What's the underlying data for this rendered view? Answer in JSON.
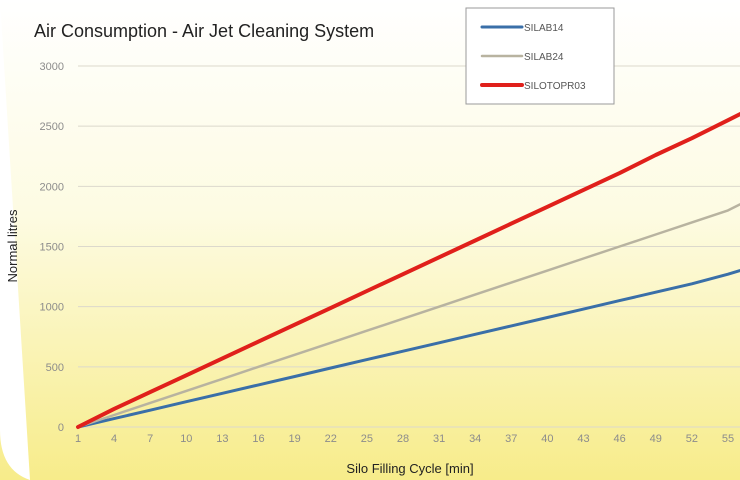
{
  "chart_data": {
    "type": "line",
    "title": "Air Consumption - Air Jet Cleaning System",
    "xlabel": "Silo Filling Cycle [min]",
    "ylabel": "Normal litres",
    "x_ticks": [
      1,
      4,
      7,
      10,
      13,
      16,
      19,
      22,
      25,
      28,
      31,
      34,
      37,
      40,
      43,
      46,
      49,
      52,
      55
    ],
    "xlim": [
      1,
      56
    ],
    "ylim": [
      0,
      3000
    ],
    "y_ticks": [
      0,
      500,
      1000,
      1500,
      2000,
      2500,
      3000
    ],
    "grid": true,
    "legend_position": "top-right",
    "series": [
      {
        "name": "SILAB14",
        "color": "#3a6fa8",
        "x": [
          1,
          4,
          7,
          10,
          13,
          16,
          19,
          22,
          25,
          28,
          31,
          34,
          37,
          40,
          43,
          46,
          49,
          52,
          55,
          56
        ],
        "values": [
          0,
          70,
          140,
          210,
          280,
          350,
          420,
          490,
          560,
          630,
          700,
          770,
          840,
          910,
          980,
          1050,
          1120,
          1190,
          1270,
          1300
        ]
      },
      {
        "name": "SILAB24",
        "color": "#b8b3a0",
        "x": [
          1,
          4,
          7,
          10,
          13,
          16,
          19,
          22,
          25,
          28,
          31,
          34,
          37,
          40,
          43,
          46,
          49,
          52,
          55,
          56
        ],
        "values": [
          0,
          100,
          200,
          300,
          400,
          500,
          600,
          700,
          800,
          900,
          1000,
          1100,
          1200,
          1300,
          1400,
          1500,
          1600,
          1700,
          1800,
          1850
        ]
      },
      {
        "name": "SILOTOPR03",
        "color": "#e0201b",
        "x": [
          1,
          4,
          7,
          10,
          13,
          16,
          19,
          22,
          25,
          28,
          31,
          34,
          37,
          40,
          43,
          46,
          49,
          52,
          55,
          56
        ],
        "values": [
          0,
          150,
          290,
          430,
          570,
          710,
          850,
          990,
          1130,
          1270,
          1410,
          1550,
          1690,
          1830,
          1970,
          2110,
          2260,
          2400,
          2550,
          2600
        ]
      }
    ]
  }
}
